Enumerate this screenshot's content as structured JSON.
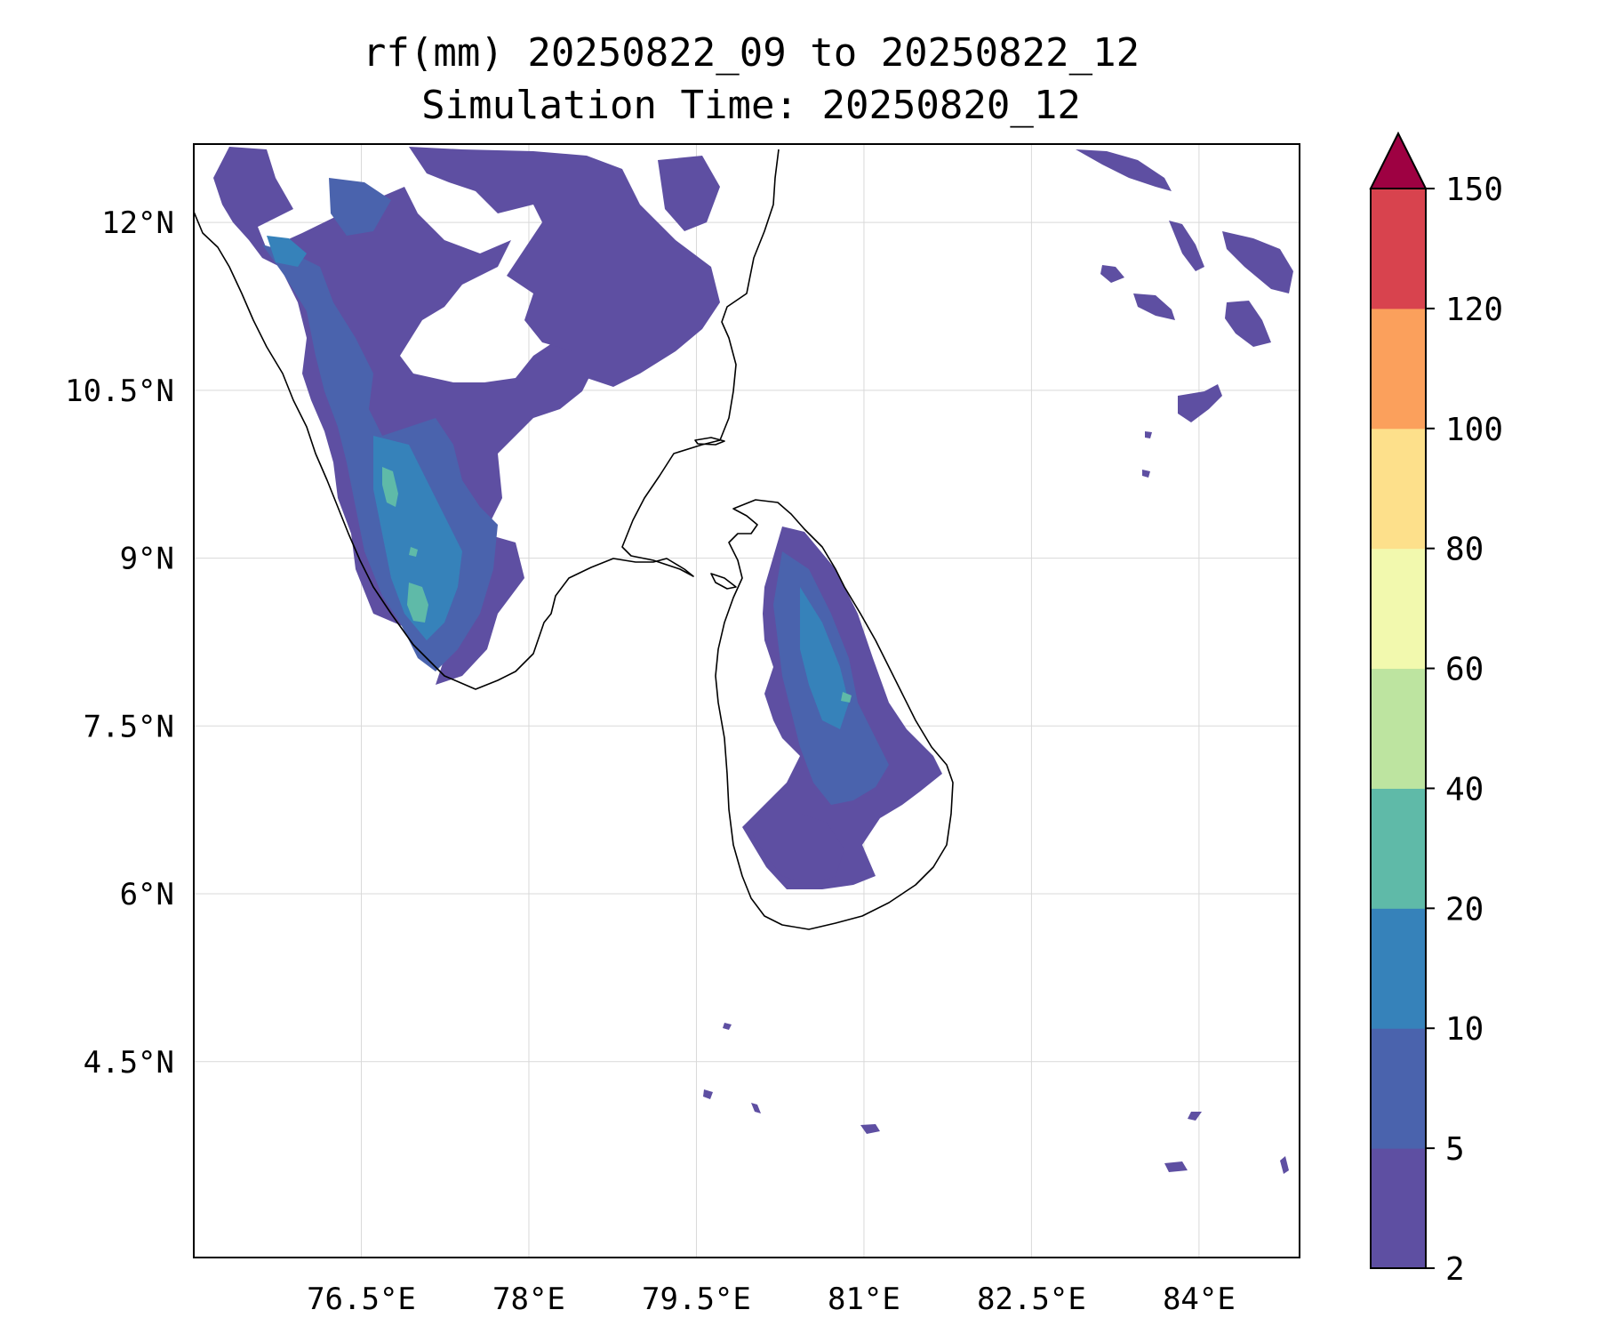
{
  "title": {
    "line1": "rf(mm) 20250822_09 to 20250822_12",
    "line2": "Simulation Time: 20250820_12"
  },
  "map": {
    "lon_range": [
      75.0,
      84.9
    ],
    "lat_range": [
      2.75,
      12.7
    ],
    "lon_ticks": [
      {
        "value": 76.5,
        "label": "76.5°E"
      },
      {
        "value": 78.0,
        "label": "78°E"
      },
      {
        "value": 79.5,
        "label": "79.5°E"
      },
      {
        "value": 81.0,
        "label": "81°E"
      },
      {
        "value": 82.5,
        "label": "82.5°E"
      },
      {
        "value": 84.0,
        "label": "84°E"
      }
    ],
    "lat_ticks": [
      {
        "value": 12.0,
        "label": "12°N"
      },
      {
        "value": 10.5,
        "label": "10.5°N"
      },
      {
        "value": 9.0,
        "label": "9°N"
      },
      {
        "value": 7.5,
        "label": "7.5°N"
      },
      {
        "value": 6.0,
        "label": "6°N"
      },
      {
        "value": 4.5,
        "label": "4.5°N"
      }
    ],
    "grid": true
  },
  "colorbar": {
    "levels": [
      2,
      5,
      10,
      20,
      40,
      60,
      80,
      100,
      120,
      150
    ],
    "labels": [
      "2",
      "5",
      "10",
      "20",
      "40",
      "60",
      "80",
      "100",
      "120",
      "150"
    ],
    "colors": [
      "#5e4fa2",
      "#4a63ad",
      "#3682ba",
      "#5fbaa8",
      "#bde4a0",
      "#f2f9ae",
      "#fde08b",
      "#fba05c",
      "#d8434e"
    ],
    "extend_color": "#9e0142"
  }
}
